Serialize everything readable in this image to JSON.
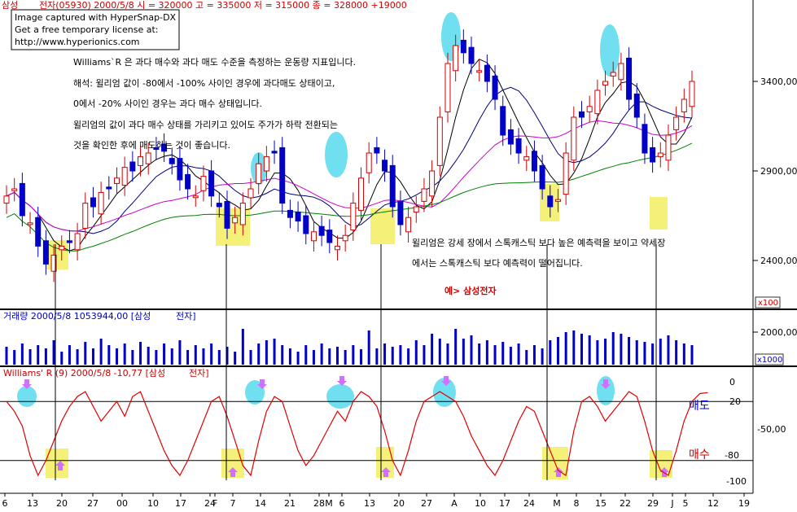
{
  "header": {
    "stock_label_1": "삼성",
    "stock_label_2": "전자(05930) 2000/5/8 시 = 320000 고 = 335000 저 = 315000 종 = 328000 +19000"
  },
  "watermark": {
    "line1": "Image captured with HyperSnap-DX",
    "line2": "Get a free temporary license at:",
    "line3": "http://www.hyperionics.com"
  },
  "annotations": {
    "line1": "Williams`R 은 과다 매수와 과다 매도 수준을 측정하는 운동량 지표입니다.",
    "line2": "해석: 윌리엄 값이 -80에서 -100% 사이인 경우에 과다매도 상태이고,",
    "line3": "0에서 -20% 사이인 경우는 과다 매수 상태입니다.",
    "line4": "윌리엄의 값이 과다 매수 상태를 가리키고 있어도 주가가 하락 전환되는",
    "line5": "것을 확인한 후에 매도하는 것이 좋습니다.",
    "line6": "윌리엄은 강세 장에서 스톡캐스틱 보다 높은 예측력을 보이고 약세장",
    "line7": "에서는 스톡캐스틱 보다 예측력이 떨어집니다.",
    "example": "예> 삼성전자"
  },
  "price_panel": {
    "y_labels": [
      "3400,00",
      "2900,00",
      "2400,00"
    ],
    "unit": "x100"
  },
  "volume_panel": {
    "title": "거래량 2000/5/8 1053944,00 [삼성",
    "title2": "전자]",
    "y_label": "2000,00",
    "unit": "x1000"
  },
  "williams_panel": {
    "title": "Williams' R (9) 2000/5/8 -10,77 [삼성",
    "title2": "전자]",
    "y_labels": [
      "0",
      "20",
      "-50,00",
      "-80",
      "-100"
    ],
    "sell_label": "매도",
    "buy_label": "매수"
  },
  "x_axis": {
    "labels": [
      "6",
      "13",
      "20",
      "27",
      "00",
      "10",
      "17",
      "24",
      "F",
      "7",
      "14",
      "21",
      "28",
      "M",
      "6",
      "13",
      "20",
      "27",
      "A",
      "10",
      "17",
      "24",
      "M",
      "8",
      "15",
      "22",
      "29",
      "J",
      "5",
      "12",
      "19"
    ]
  },
  "colors": {
    "up_candle": "#d40000",
    "down_candle": "#0000c8",
    "ma5": "#000000",
    "ma10": "#000080",
    "ma20": "#cc00cc",
    "ma60": "#008000",
    "volume": "#0000c8",
    "williams": "#e00000",
    "cyan_mark": "#70e0f0",
    "yellow_mark": "#f5f078",
    "arrow": "#d070ff"
  },
  "chart_data": [
    {
      "type": "candlestick",
      "title": "",
      "ylim": [
        2200,
        3700
      ],
      "yticks": [
        2400,
        2900,
        3400
      ],
      "unit": "x100",
      "moving_averages": [
        "ma5",
        "ma10",
        "ma20",
        "ma60"
      ],
      "close": [
        2760,
        2800,
        2650,
        2610,
        2480,
        2380,
        2430,
        2480,
        2500,
        2550,
        2720,
        2700,
        2780,
        2800,
        2860,
        2920,
        2900,
        2980,
        3000,
        3020,
        3010,
        2940,
        2850,
        2800,
        2760,
        2870,
        2760,
        2700,
        2580,
        2640,
        2720,
        2800,
        2940,
        2980,
        3000,
        2720,
        2640,
        2620,
        2550,
        2560,
        2540,
        2500,
        2480,
        2540,
        2720,
        2860,
        3000,
        3000,
        2900,
        2700,
        2600,
        2640,
        2700,
        2800,
        2900,
        3200,
        3500,
        3600,
        3560,
        3500,
        3460,
        3400,
        3300,
        3100,
        3050,
        3000,
        2980,
        2900,
        2800,
        2700,
        2740,
        3000,
        3200,
        3200,
        3260,
        3350,
        3400,
        3450,
        3500,
        3300,
        3200,
        3000,
        2950,
        3000,
        3100,
        3200,
        3300,
        3400
      ],
      "note": "approximate closing prices (x100 KRW) read from candlestick body positions"
    },
    {
      "type": "bar",
      "title": "",
      "y_label": "2000,00",
      "unit": "x1000",
      "values": [
        1100,
        900,
        1300,
        950,
        1200,
        1000,
        1500,
        800,
        1200,
        950,
        1400,
        1000,
        1600,
        1200,
        1000,
        1300,
        900,
        1400,
        1100,
        900,
        1300,
        1000,
        1500,
        900,
        1200,
        1000,
        1300,
        900,
        1100,
        800,
        2200,
        900,
        1300,
        1500,
        1600,
        1200,
        1000,
        800,
        1200,
        900,
        1300,
        1000,
        1100,
        900,
        1200,
        950,
        2100,
        1000,
        1300,
        1100,
        1200,
        1000,
        1500,
        1200,
        1900,
        1600,
        1300,
        2200,
        1600,
        1800,
        1300,
        1500,
        1200,
        1400,
        1100,
        1300,
        900,
        1200,
        1000,
        1500,
        1700,
        2000,
        2100,
        1900,
        1800,
        1500,
        1600,
        2000,
        1900,
        1700,
        1500,
        1400,
        1300,
        1600,
        1800,
        1500,
        1300,
        1200
      ]
    },
    {
      "type": "line",
      "title": "",
      "ylim": [
        -105,
        5
      ],
      "yticks": [
        0,
        -20,
        -50,
        -80,
        -100
      ],
      "reference_lines": [
        -20,
        -80
      ],
      "series": [
        {
          "values": [
            -20,
            -30,
            -45,
            -75,
            -95,
            -80,
            -60,
            -40,
            -25,
            -15,
            -10,
            -25,
            -40,
            -30,
            -20,
            -35,
            -15,
            -10,
            -30,
            -50,
            -70,
            -85,
            -95,
            -80,
            -60,
            -40,
            -20,
            -15,
            -35,
            -60,
            -85,
            -95,
            -60,
            -30,
            -15,
            -20,
            -45,
            -70,
            -85,
            -75,
            -60,
            -45,
            -30,
            -40,
            -20,
            -10,
            -15,
            -25,
            -50,
            -80,
            -95,
            -70,
            -40,
            -20,
            -15,
            -10,
            -15,
            -20,
            -35,
            -55,
            -70,
            -85,
            -95,
            -80,
            -60,
            -40,
            -25,
            -30,
            -50,
            -70,
            -90,
            -95,
            -50,
            -20,
            -15,
            -25,
            -40,
            -30,
            -20,
            -10,
            -15,
            -40,
            -70,
            -90,
            -95,
            -70,
            -40,
            -20,
            -12,
            -11
          ]
        }
      ]
    }
  ]
}
